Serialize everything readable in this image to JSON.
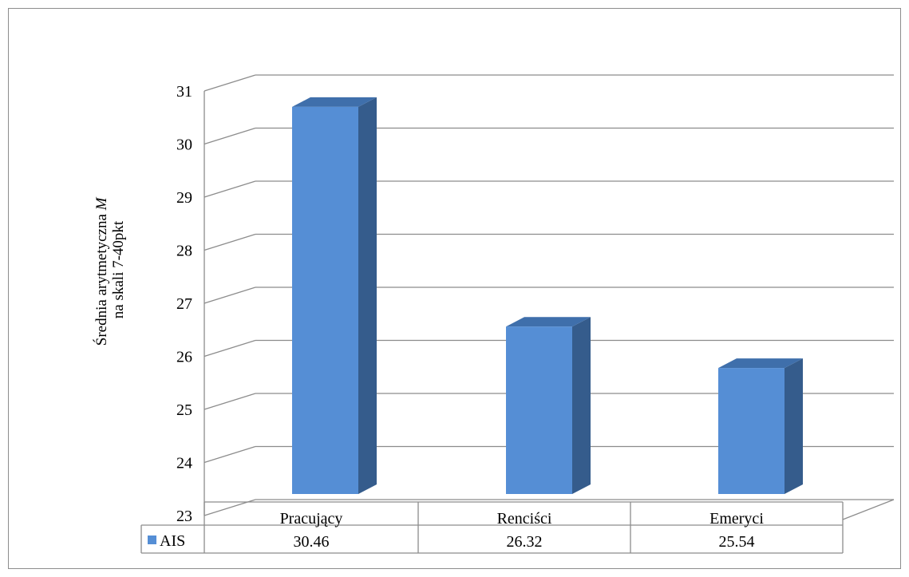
{
  "chart_data": {
    "type": "bar",
    "categories": [
      "Pracujący",
      "Renciści",
      "Emeryci"
    ],
    "series": [
      {
        "name": "AIS",
        "values": [
          30.46,
          26.32,
          25.54
        ],
        "color": "#558ed5",
        "side_color": "#355c8c",
        "top_color": "#3f6fab"
      }
    ],
    "table_values": [
      "30.46",
      "26.32",
      "25.54"
    ],
    "ylabel_line1": "Średnia arytmetyczna ",
    "ylabel_italic": "M",
    "ylabel_line2": "na skali 7-40pkt",
    "ylim": [
      23,
      31
    ],
    "yticks": [
      "23",
      "24",
      "25",
      "26",
      "27",
      "28",
      "29",
      "30",
      "31"
    ],
    "grid": true,
    "legend": "data-table",
    "style": "3d-column"
  }
}
